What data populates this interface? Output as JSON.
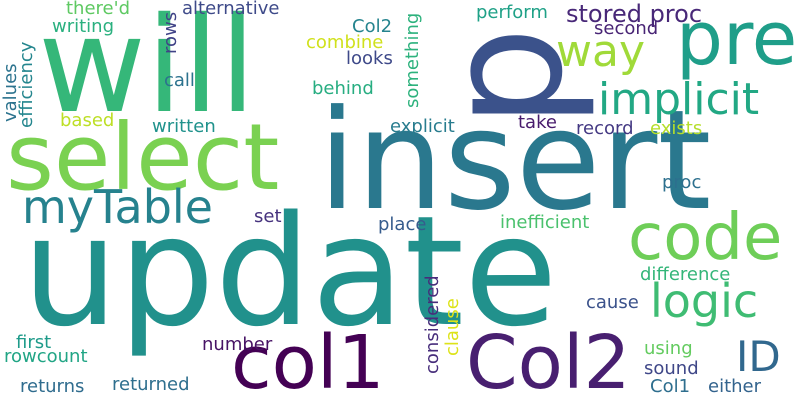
{
  "words": [
    {
      "text": "update",
      "color": "#21918c"
    },
    {
      "text": "insert",
      "color": "#2a788e"
    },
    {
      "text": "will",
      "color": "#35b779"
    },
    {
      "text": "select",
      "color": "#7ad151"
    },
    {
      "text": "p",
      "color": "#3b528b"
    },
    {
      "text": "pre",
      "color": "#1f9e89"
    },
    {
      "text": "col1",
      "color": "#440154"
    },
    {
      "text": "Col2",
      "color": "#481f70"
    },
    {
      "text": "code",
      "color": "#6ece58"
    },
    {
      "text": "myTable",
      "color": "#26828e"
    },
    {
      "text": "implicit",
      "color": "#22a884"
    },
    {
      "text": "logic",
      "color": "#3fbc73"
    },
    {
      "text": "way",
      "color": "#a0da39"
    },
    {
      "text": "ID",
      "color": "#31688e"
    },
    {
      "text": "stored proc",
      "color": "#482878"
    },
    {
      "text": "alternative",
      "color": "#3e4a89"
    },
    {
      "text": "there'd",
      "color": "#5ec962"
    },
    {
      "text": "writing",
      "color": "#2ab07f"
    },
    {
      "text": "perform",
      "color": "#1fa187"
    },
    {
      "text": "Col2",
      "color": "#25848e"
    },
    {
      "text": "second",
      "color": "#482475"
    },
    {
      "text": "combine",
      "color": "#d0e11c"
    },
    {
      "text": "looks",
      "color": "#3e4989"
    },
    {
      "text": "call",
      "color": "#2c728e"
    },
    {
      "text": "behind",
      "color": "#27ad81"
    },
    {
      "text": "based",
      "color": "#bddf26"
    },
    {
      "text": "written",
      "color": "#20928c"
    },
    {
      "text": "explicit",
      "color": "#287c8e"
    },
    {
      "text": "take",
      "color": "#481b6d"
    },
    {
      "text": "record",
      "color": "#443983"
    },
    {
      "text": "exists",
      "color": "#b5de2b"
    },
    {
      "text": "proc",
      "color": "#2d708e"
    },
    {
      "text": "set",
      "color": "#46327e"
    },
    {
      "text": "place",
      "color": "#365c8d"
    },
    {
      "text": "inefficient",
      "color": "#4ac16d"
    },
    {
      "text": "difference",
      "color": "#34b679"
    },
    {
      "text": "cause",
      "color": "#3b528b"
    },
    {
      "text": "first",
      "color": "#1e9b8a"
    },
    {
      "text": "rowcount",
      "color": "#21a585"
    },
    {
      "text": "number",
      "color": "#471365"
    },
    {
      "text": "using",
      "color": "#63cb5f"
    },
    {
      "text": "sound",
      "color": "#3f4788"
    },
    {
      "text": "returns",
      "color": "#2f6c8e"
    },
    {
      "text": "returned",
      "color": "#2e6f8e"
    },
    {
      "text": "Col1",
      "color": "#2e6e8e"
    },
    {
      "text": "either",
      "color": "#33638d"
    },
    {
      "text": "values",
      "color": "#2c738e"
    },
    {
      "text": "efficiency",
      "color": "#24868e"
    },
    {
      "text": "rows",
      "color": "#404387"
    },
    {
      "text": "something",
      "color": "#2db27d"
    },
    {
      "text": "considered",
      "color": "#472d7b"
    },
    {
      "text": "clause",
      "color": "#dde318"
    }
  ]
}
